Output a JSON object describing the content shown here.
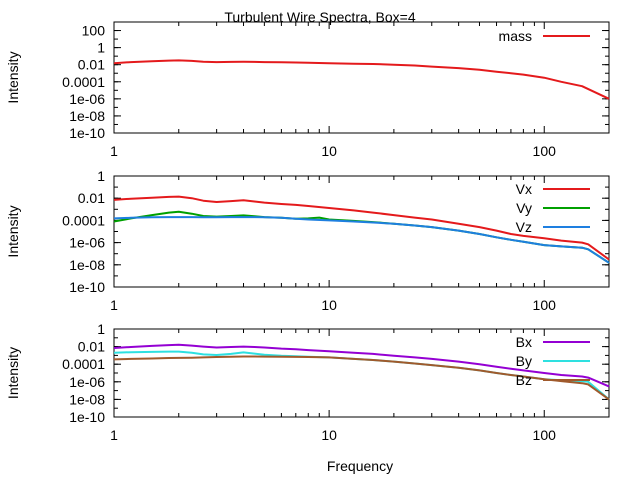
{
  "figure": {
    "title": "Turbulent Wire Spectra, Box=4",
    "xlabel": "Frequency"
  },
  "chart_data": [
    {
      "type": "line",
      "title": "Turbulent Wire Spectra, Box=4",
      "xlabel": "",
      "ylabel": "Intensity",
      "xscale": "log",
      "yscale": "log",
      "xlim": [
        1,
        200
      ],
      "ylim": [
        1e-10,
        1000
      ],
      "xticks": [
        1,
        10,
        100
      ],
      "xtick_labels": [
        "1",
        "10",
        "100"
      ],
      "yticks": [
        100,
        1,
        0.01,
        0.0001,
        1e-06,
        1e-08,
        1e-10
      ],
      "ytick_labels": [
        "100",
        "1",
        "0.01",
        "0.0001",
        "1e-06",
        "1e-08",
        "1e-10"
      ],
      "grid": false,
      "legend": "top-right",
      "series": [
        {
          "name": "mass",
          "color": "#e41a1c",
          "x": [
            1,
            1.2,
            1.5,
            1.8,
            2,
            2.3,
            2.6,
            3,
            3.5,
            4,
            4.5,
            5,
            6,
            7,
            8,
            10,
            13,
            16,
            20,
            25,
            30,
            40,
            50,
            60,
            70,
            80,
            100,
            120,
            150,
            200
          ],
          "y": [
            0.015,
            0.02,
            0.025,
            0.03,
            0.032,
            0.028,
            0.022,
            0.02,
            0.021,
            0.022,
            0.021,
            0.02,
            0.019,
            0.018,
            0.017,
            0.015,
            0.013,
            0.012,
            0.01,
            0.008,
            0.006,
            0.004,
            0.0025,
            0.0015,
            0.001,
            0.0007,
            0.0003,
            0.0001,
            3e-05,
            1e-06
          ]
        }
      ]
    },
    {
      "type": "line",
      "xlabel": "",
      "ylabel": "Intensity",
      "xscale": "log",
      "yscale": "log",
      "xlim": [
        1,
        200
      ],
      "ylim": [
        1e-10,
        1
      ],
      "xticks": [
        1,
        10,
        100
      ],
      "xtick_labels": [
        "1",
        "10",
        "100"
      ],
      "yticks": [
        1,
        0.01,
        0.0001,
        1e-06,
        1e-08,
        1e-10
      ],
      "ytick_labels": [
        "1",
        "0.01",
        "0.0001",
        "1e-06",
        "1e-08",
        "1e-10"
      ],
      "grid": false,
      "legend": "top-right",
      "series": [
        {
          "name": "Vx",
          "color": "#e41a1c",
          "x": [
            1,
            1.2,
            1.5,
            1.8,
            2,
            2.3,
            2.6,
            3,
            3.5,
            4,
            4.5,
            5,
            6,
            7,
            8,
            10,
            13,
            16,
            20,
            25,
            30,
            40,
            50,
            60,
            70,
            80,
            100,
            120,
            150,
            160,
            200
          ],
          "y": [
            0.007,
            0.009,
            0.011,
            0.013,
            0.014,
            0.01,
            0.006,
            0.0045,
            0.0055,
            0.0065,
            0.005,
            0.004,
            0.003,
            0.0025,
            0.002,
            0.0013,
            0.0008,
            0.0005,
            0.0003,
            0.00018,
            0.00012,
            5e-05,
            2.5e-05,
            1.2e-05,
            6e-06,
            4e-06,
            2.5e-06,
            1.5e-06,
            1e-06,
            7e-07,
            3e-08
          ]
        },
        {
          "name": "Vy",
          "color": "#00a000",
          "x": [
            1,
            1.2,
            1.5,
            1.8,
            2,
            2.3,
            2.6,
            3,
            3.5,
            4,
            4.5,
            5,
            6,
            7,
            8,
            9,
            10,
            13,
            16,
            20,
            25,
            30,
            40,
            50,
            60,
            70,
            80,
            100,
            120,
            150,
            160,
            200
          ],
          "y": [
            8e-05,
            0.00015,
            0.0003,
            0.0005,
            0.0006,
            0.0004,
            0.00025,
            0.00022,
            0.00025,
            0.00028,
            0.00024,
            0.0002,
            0.00017,
            0.00014,
            0.00015,
            0.00018,
            0.00012,
            9e-05,
            7e-05,
            5e-05,
            3.5e-05,
            2.5e-05,
            1.2e-05,
            6e-06,
            3e-06,
            1.8e-06,
            1.2e-06,
            6e-07,
            4.5e-07,
            3.5e-07,
            2.5e-07,
            1.5e-08
          ]
        },
        {
          "name": "Vz",
          "color": "#1e7fe0",
          "x": [
            1,
            1.2,
            1.5,
            1.8,
            2,
            2.3,
            2.6,
            3,
            3.5,
            4,
            4.5,
            5,
            6,
            7,
            8,
            10,
            13,
            16,
            20,
            25,
            30,
            40,
            50,
            60,
            70,
            80,
            100,
            120,
            150,
            160,
            200
          ],
          "y": [
            0.00015,
            0.00017,
            0.00019,
            0.0002,
            0.0002,
            0.0002,
            0.00019,
            0.00019,
            0.0002,
            0.0002,
            0.0002,
            0.00019,
            0.00017,
            0.00014,
            0.00012,
            0.0001,
            8e-05,
            6.5e-05,
            5e-05,
            3.5e-05,
            2.5e-05,
            1.2e-05,
            6e-06,
            3e-06,
            1.8e-06,
            1.2e-06,
            6e-07,
            4.5e-07,
            3.5e-07,
            2.5e-07,
            1.5e-08
          ]
        }
      ]
    },
    {
      "type": "line",
      "xlabel": "Frequency",
      "ylabel": "Intensity",
      "xscale": "log",
      "yscale": "log",
      "xlim": [
        1,
        200
      ],
      "ylim": [
        1e-10,
        1
      ],
      "xticks": [
        1,
        10,
        100
      ],
      "xtick_labels": [
        "1",
        "10",
        "100"
      ],
      "yticks": [
        1,
        0.01,
        0.0001,
        1e-06,
        1e-08,
        1e-10
      ],
      "ytick_labels": [
        "1",
        "0.01",
        "0.0001",
        "1e-06",
        "1e-08",
        "1e-10"
      ],
      "grid": false,
      "legend": "top-right",
      "series": [
        {
          "name": "Bx",
          "color": "#9400d3",
          "x": [
            1,
            1.2,
            1.5,
            1.8,
            2,
            2.3,
            2.6,
            3,
            3.5,
            4,
            4.5,
            5,
            6,
            7,
            8,
            10,
            13,
            16,
            20,
            25,
            30,
            40,
            50,
            60,
            70,
            80,
            100,
            120,
            150,
            160,
            200
          ],
          "y": [
            0.007,
            0.009,
            0.012,
            0.015,
            0.016,
            0.013,
            0.01,
            0.008,
            0.009,
            0.01,
            0.009,
            0.008,
            0.006,
            0.005,
            0.004,
            0.003,
            0.002,
            0.0015,
            0.0009,
            0.0006,
            0.0004,
            0.0002,
            0.0001,
            5e-05,
            3e-05,
            2e-05,
            1e-05,
            6e-06,
            4e-06,
            3e-06,
            3e-07
          ]
        },
        {
          "name": "By",
          "color": "#2ee0e0",
          "x": [
            1,
            1.2,
            1.5,
            1.8,
            2,
            2.3,
            2.6,
            3,
            3.5,
            4,
            4.5,
            5,
            6,
            7,
            8,
            10,
            13,
            16,
            20,
            25,
            30,
            40,
            50,
            60,
            70,
            80,
            100,
            120,
            150,
            160,
            200
          ],
          "y": [
            0.002,
            0.0023,
            0.0025,
            0.0027,
            0.0027,
            0.002,
            0.0013,
            0.0011,
            0.0015,
            0.0022,
            0.0016,
            0.0012,
            0.0009,
            0.0008,
            0.0007,
            0.0006,
            0.0004,
            0.0003,
            0.0002,
            0.00012,
            8e-05,
            4e-05,
            2e-05,
            1e-05,
            6e-06,
            4e-06,
            2e-06,
            1.5e-06,
            1.2e-06,
            1e-06,
            1e-08
          ]
        },
        {
          "name": "Bz",
          "color": "#a05a2c",
          "x": [
            1,
            1.2,
            1.5,
            1.8,
            2,
            2.3,
            2.6,
            3,
            3.5,
            4,
            4.5,
            5,
            6,
            7,
            8,
            10,
            13,
            16,
            20,
            25,
            30,
            40,
            50,
            60,
            70,
            80,
            100,
            120,
            150,
            160,
            200
          ],
          "y": [
            0.00035,
            0.0004,
            0.00045,
            0.0005,
            0.00052,
            0.00055,
            0.0006,
            0.00065,
            0.0007,
            0.00075,
            0.00075,
            0.00073,
            0.0007,
            0.00068,
            0.00065,
            0.0006,
            0.0004,
            0.0003,
            0.0002,
            0.00012,
            8e-05,
            4e-05,
            2e-05,
            1e-05,
            6e-06,
            4e-06,
            2e-06,
            1.2e-06,
            7e-07,
            5e-07,
            1e-08
          ]
        }
      ]
    }
  ]
}
